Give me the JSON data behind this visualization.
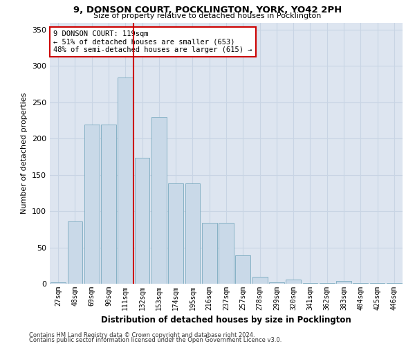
{
  "title1": "9, DONSON COURT, POCKLINGTON, YORK, YO42 2PH",
  "title2": "Size of property relative to detached houses in Pocklington",
  "xlabel": "Distribution of detached houses by size in Pocklington",
  "ylabel": "Number of detached properties",
  "categories": [
    "27sqm",
    "48sqm",
    "69sqm",
    "90sqm",
    "111sqm",
    "132sqm",
    "153sqm",
    "174sqm",
    "195sqm",
    "216sqm",
    "237sqm",
    "257sqm",
    "278sqm",
    "299sqm",
    "320sqm",
    "341sqm",
    "362sqm",
    "383sqm",
    "404sqm",
    "425sqm",
    "446sqm"
  ],
  "values": [
    2,
    86,
    219,
    219,
    284,
    174,
    230,
    138,
    138,
    84,
    84,
    39,
    10,
    2,
    6,
    1,
    1,
    4,
    1,
    1,
    1
  ],
  "bar_color": "#c9d9e8",
  "bar_edge_color": "#7aaabf",
  "vline_x_index": 4,
  "vline_color": "#cc0000",
  "annotation_text": "9 DONSON COURT: 119sqm\n← 51% of detached houses are smaller (653)\n48% of semi-detached houses are larger (615) →",
  "annotation_box_color": "#ffffff",
  "annotation_box_edge": "#cc0000",
  "grid_color": "#c8d4e4",
  "background_color": "#dde5f0",
  "ylim": [
    0,
    360
  ],
  "yticks": [
    0,
    50,
    100,
    150,
    200,
    250,
    300,
    350
  ],
  "footnote1": "Contains HM Land Registry data © Crown copyright and database right 2024.",
  "footnote2": "Contains public sector information licensed under the Open Government Licence v3.0."
}
